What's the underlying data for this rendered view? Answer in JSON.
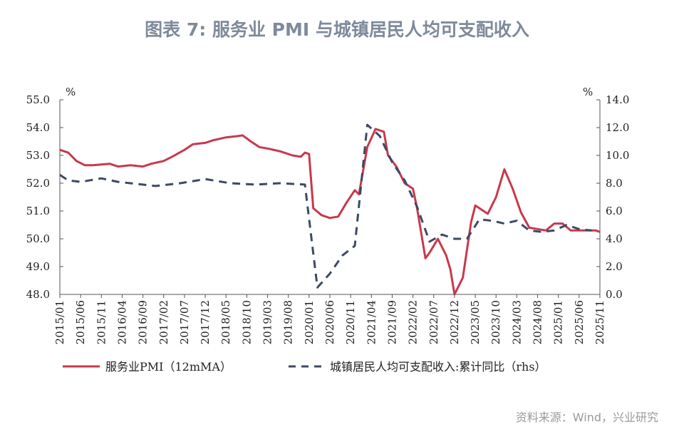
{
  "title": "图表 7:    服务业 PMI 与城镇居民人均可支配收入",
  "source": "资料来源：Wind，兴业研究",
  "chart_data": {
    "type": "line",
    "title": "图表 7:    服务业 PMI 与城镇居民人均可支配收入",
    "y_left": {
      "label": "%",
      "range": [
        48.0,
        55.0
      ],
      "ticks": [
        "48.0",
        "49.0",
        "50.0",
        "51.0",
        "52.0",
        "53.0",
        "54.0",
        "55.0"
      ]
    },
    "y_right": {
      "label": "%",
      "range": [
        0.0,
        14.0
      ],
      "ticks": [
        "0.0",
        "2.0",
        "4.0",
        "6.0",
        "8.0",
        "10.0",
        "12.0",
        "14.0"
      ]
    },
    "x_range": [
      "2015/01",
      "2025/11"
    ],
    "x_ticks": [
      "2015/01",
      "2015/06",
      "2015/11",
      "2016/04",
      "2016/09",
      "2017/02",
      "2017/07",
      "2017/12",
      "2018/05",
      "2018/10",
      "2019/03",
      "2019/08",
      "2020/01",
      "2020/06",
      "2020/11",
      "2021/04",
      "2021/09",
      "2022/02",
      "2022/07",
      "2022/12",
      "2023/05",
      "2023/10",
      "2024/03",
      "2024/08",
      "2025/01",
      "2025/06",
      "2025/11"
    ],
    "grid": false,
    "legend_placement": "bottom",
    "colors": {
      "pmi": "#c8394c",
      "income": "#3d4a63"
    },
    "series": [
      {
        "name": "服务业PMI（12mMA）",
        "axis": "left",
        "style": "solid",
        "points": [
          [
            "2015/01",
            53.2
          ],
          [
            "2015/03",
            53.1
          ],
          [
            "2015/05",
            52.8
          ],
          [
            "2015/07",
            52.65
          ],
          [
            "2015/09",
            52.65
          ],
          [
            "2016/01",
            52.7
          ],
          [
            "2016/03",
            52.6
          ],
          [
            "2016/06",
            52.65
          ],
          [
            "2016/09",
            52.6
          ],
          [
            "2016/11",
            52.7
          ],
          [
            "2017/02",
            52.8
          ],
          [
            "2017/04",
            52.95
          ],
          [
            "2017/07",
            53.2
          ],
          [
            "2017/09",
            53.4
          ],
          [
            "2017/12",
            53.45
          ],
          [
            "2018/02",
            53.55
          ],
          [
            "2018/05",
            53.65
          ],
          [
            "2018/08",
            53.7
          ],
          [
            "2018/09",
            53.72
          ],
          [
            "2018/11",
            53.5
          ],
          [
            "2019/01",
            53.3
          ],
          [
            "2019/03",
            53.25
          ],
          [
            "2019/06",
            53.15
          ],
          [
            "2019/09",
            53.0
          ],
          [
            "2019/11",
            52.95
          ],
          [
            "2019/12",
            53.1
          ],
          [
            "2020/01",
            53.05
          ],
          [
            "2020/02",
            51.1
          ],
          [
            "2020/04",
            50.85
          ],
          [
            "2020/06",
            50.75
          ],
          [
            "2020/08",
            50.8
          ],
          [
            "2020/10",
            51.3
          ],
          [
            "2020/12",
            51.75
          ],
          [
            "2021/01",
            51.6
          ],
          [
            "2021/03",
            53.3
          ],
          [
            "2021/05",
            53.95
          ],
          [
            "2021/07",
            53.85
          ],
          [
            "2021/08",
            53.0
          ],
          [
            "2021/10",
            52.6
          ],
          [
            "2021/12",
            52.0
          ],
          [
            "2022/02",
            51.8
          ],
          [
            "2022/03",
            51.1
          ],
          [
            "2022/05",
            49.3
          ],
          [
            "2022/06",
            49.5
          ],
          [
            "2022/08",
            50.0
          ],
          [
            "2022/10",
            49.4
          ],
          [
            "2022/11",
            48.9
          ],
          [
            "2022/12",
            48.0
          ],
          [
            "2023/02",
            48.6
          ],
          [
            "2023/04",
            50.6
          ],
          [
            "2023/05",
            51.2
          ],
          [
            "2023/08",
            50.9
          ],
          [
            "2023/10",
            51.5
          ],
          [
            "2023/12",
            52.5
          ],
          [
            "2024/02",
            51.8
          ],
          [
            "2024/04",
            50.95
          ],
          [
            "2024/06",
            50.4
          ],
          [
            "2024/08",
            50.35
          ],
          [
            "2024/10",
            50.3
          ],
          [
            "2024/12",
            50.55
          ],
          [
            "2025/02",
            50.55
          ],
          [
            "2025/04",
            50.3
          ],
          [
            "2025/06",
            50.3
          ],
          [
            "2025/08",
            50.3
          ],
          [
            "2025/10",
            50.3
          ],
          [
            "2025/11",
            50.25
          ]
        ]
      },
      {
        "name": "城镇居民人均可支配收入:累计同比（rhs）",
        "axis": "right",
        "style": "dashed",
        "points": [
          [
            "2015/01",
            8.6
          ],
          [
            "2015/03",
            8.2
          ],
          [
            "2015/06",
            8.1
          ],
          [
            "2015/11",
            8.35
          ],
          [
            "2016/03",
            8.1
          ],
          [
            "2016/06",
            8.0
          ],
          [
            "2016/12",
            7.8
          ],
          [
            "2017/06",
            8.0
          ],
          [
            "2017/12",
            8.3
          ],
          [
            "2018/06",
            8.0
          ],
          [
            "2018/12",
            7.9
          ],
          [
            "2019/06",
            8.0
          ],
          [
            "2019/12",
            7.9
          ],
          [
            "2020/03",
            0.5
          ],
          [
            "2020/06",
            1.5
          ],
          [
            "2020/09",
            2.8
          ],
          [
            "2020/12",
            3.5
          ],
          [
            "2021/03",
            12.2
          ],
          [
            "2021/06",
            11.4
          ],
          [
            "2021/09",
            9.5
          ],
          [
            "2021/12",
            8.2
          ],
          [
            "2022/03",
            6.3
          ],
          [
            "2022/06",
            3.8
          ],
          [
            "2022/09",
            4.3
          ],
          [
            "2022/12",
            4.0
          ],
          [
            "2023/03",
            4.0
          ],
          [
            "2023/06",
            5.4
          ],
          [
            "2023/09",
            5.3
          ],
          [
            "2023/12",
            5.1
          ],
          [
            "2024/03",
            5.3
          ],
          [
            "2024/06",
            4.6
          ],
          [
            "2024/09",
            4.5
          ],
          [
            "2024/12",
            4.6
          ],
          [
            "2025/03",
            5.0
          ],
          [
            "2025/06",
            4.7
          ],
          [
            "2025/09",
            4.6
          ]
        ]
      }
    ]
  }
}
